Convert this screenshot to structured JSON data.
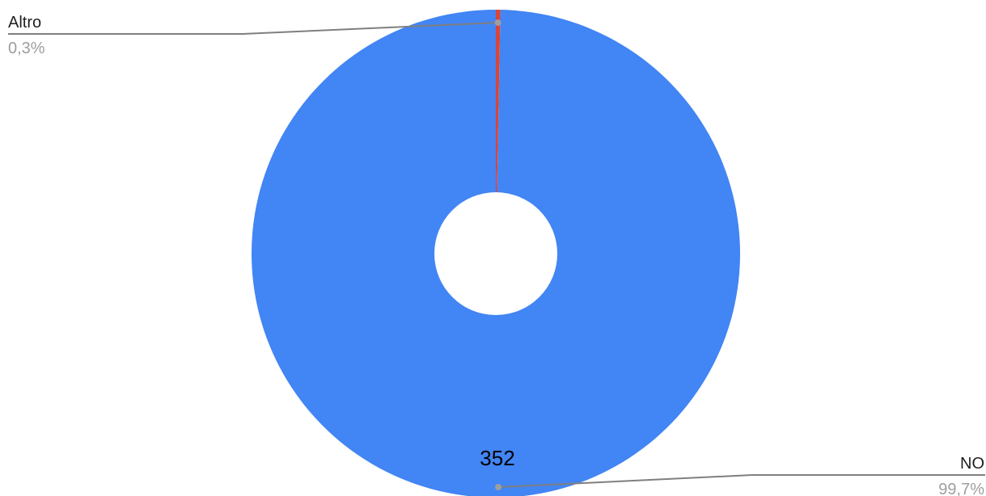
{
  "chart_data": {
    "type": "pie",
    "style": "donut",
    "slices": [
      {
        "label": "Altro",
        "percent_label": "0,3%",
        "value_label": "",
        "color": "#db4437"
      },
      {
        "label": "NO",
        "percent_label": "99,7%",
        "value_label": "352",
        "color": "#4285f4"
      }
    ],
    "values": [
      0.3,
      99.7
    ],
    "legend": "callout labels"
  }
}
